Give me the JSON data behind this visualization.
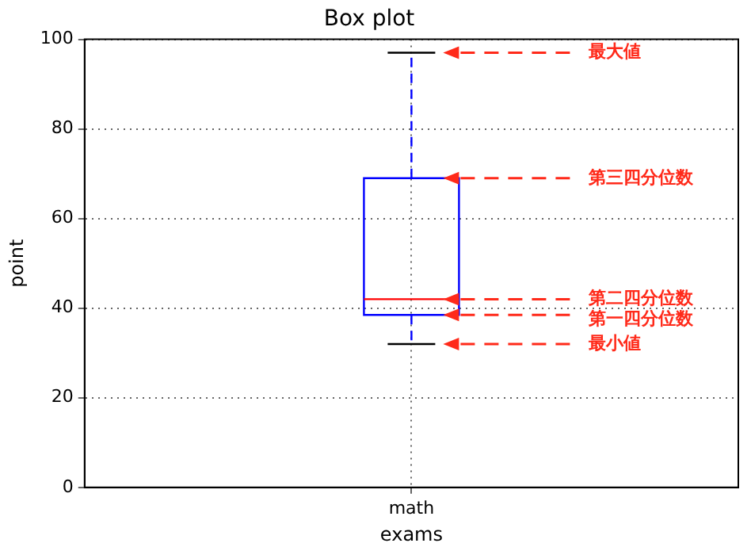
{
  "chart_data": {
    "type": "box",
    "title": "Box plot",
    "xlabel": "exams",
    "ylabel": "point",
    "categories": [
      "math"
    ],
    "series": [
      {
        "color": "#0000ff",
        "boxes": [
          {
            "low": 32,
            "q1": 38.5,
            "median": 42,
            "q3": 69,
            "high": 97
          }
        ]
      }
    ],
    "ylim": [
      0,
      100
    ],
    "yticks": [
      0,
      20,
      40,
      60,
      80,
      100
    ],
    "grid": true,
    "legend": false,
    "annotations": [
      "最大値",
      "第三四分位数",
      "第二四分位数",
      "第一四分位数",
      "最小値"
    ]
  }
}
